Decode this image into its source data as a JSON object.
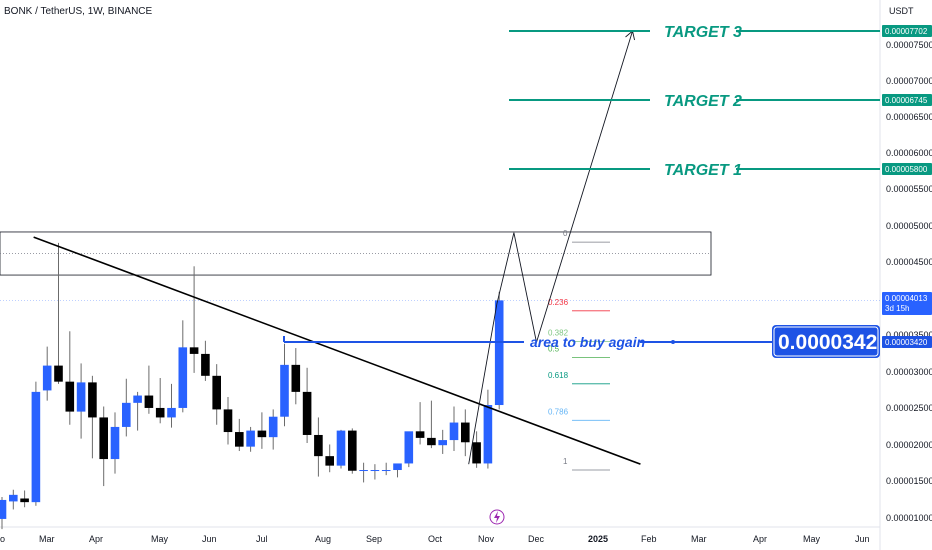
{
  "header": {
    "symbol_title": "BONK / TetherUS, 1W, BINANCE",
    "currency": "USDT"
  },
  "axis_ticks": [
    "0.00007500",
    "0.00007000",
    "0.00006500",
    "0.00006000",
    "0.00005500",
    "0.00005000",
    "0.00004500",
    "0.00003500",
    "0.00003000",
    "0.00002500",
    "0.00002000",
    "0.00001500",
    "0.00001000"
  ],
  "price_tags": {
    "target3": "0.00007702",
    "target2": "0.00006745",
    "target1": "0.00005800",
    "current": "0.00004013",
    "countdown": "3d 15h",
    "buy": "0.00003420"
  },
  "x_labels": [
    "o",
    "Mar",
    "Apr",
    "May",
    "Jun",
    "Jul",
    "Aug",
    "Sep",
    "Oct",
    "Nov",
    "Dec",
    "2025",
    "Feb",
    "Mar",
    "Apr",
    "May",
    "Jun"
  ],
  "annotations": {
    "target1": "TARGET 1",
    "target2": "TARGET 2",
    "target3": "TARGET 3",
    "buy_zone": "area to buy again",
    "buy_price_big": "0.0000342"
  },
  "fib_levels": [
    {
      "label": "0",
      "price": 4.92e-05,
      "color": "#787b86"
    },
    {
      "label": "0.236",
      "price": 3.98e-05,
      "color": "#f23645"
    },
    {
      "label": "0.382",
      "price": 3.56e-05,
      "color": "#81c784"
    },
    {
      "label": "0.5",
      "price": 3.34e-05,
      "color": "#4caf50"
    },
    {
      "label": "0.618",
      "price": 2.98e-05,
      "color": "#089981"
    },
    {
      "label": "0.786",
      "price": 2.48e-05,
      "color": "#64b5f6"
    },
    {
      "label": "1",
      "price": 1.8e-05,
      "color": "#787b86"
    }
  ],
  "colors": {
    "up": "#2962ff",
    "down": "#000000",
    "target": "#089981",
    "buy_line": "#1e53e5",
    "grid_axis_text": "#131722"
  },
  "chart_data": {
    "type": "candlestick",
    "title": "BONK / TetherUS, 1W, BINANCE",
    "ylabel": "USDT",
    "ylim": [
      9e-06,
      7.8e-05
    ],
    "candles": [
      {
        "o": 1.02e-05,
        "h": 1.32e-05,
        "l": 8.8e-06,
        "c": 1.28e-05
      },
      {
        "o": 1.26e-05,
        "h": 1.42e-05,
        "l": 1.15e-05,
        "c": 1.35e-05
      },
      {
        "o": 1.3e-05,
        "h": 1.41e-05,
        "l": 1.18e-05,
        "c": 1.25e-05
      },
      {
        "o": 1.25e-05,
        "h": 2.9e-05,
        "l": 1.2e-05,
        "c": 2.76e-05
      },
      {
        "o": 2.78e-05,
        "h": 3.38e-05,
        "l": 2.64e-05,
        "c": 3.12e-05
      },
      {
        "o": 3.12e-05,
        "h": 4.8e-05,
        "l": 2.87e-05,
        "c": 2.9e-05
      },
      {
        "o": 2.9e-05,
        "h": 3.59e-05,
        "l": 2.31e-05,
        "c": 2.49e-05
      },
      {
        "o": 2.49e-05,
        "h": 3.15e-05,
        "l": 2.12e-05,
        "c": 2.89e-05
      },
      {
        "o": 2.89e-05,
        "h": 2.98e-05,
        "l": 1.85e-05,
        "c": 2.41e-05
      },
      {
        "o": 2.41e-05,
        "h": 2.56e-05,
        "l": 1.47e-05,
        "c": 1.84e-05
      },
      {
        "o": 1.84e-05,
        "h": 2.48e-05,
        "l": 1.64e-05,
        "c": 2.28e-05
      },
      {
        "o": 2.28e-05,
        "h": 2.94e-05,
        "l": 2.15e-05,
        "c": 2.61e-05
      },
      {
        "o": 2.61e-05,
        "h": 2.76e-05,
        "l": 2.23e-05,
        "c": 2.71e-05
      },
      {
        "o": 2.71e-05,
        "h": 3.12e-05,
        "l": 2.46e-05,
        "c": 2.54e-05
      },
      {
        "o": 2.54e-05,
        "h": 2.95e-05,
        "l": 2.33e-05,
        "c": 2.41e-05
      },
      {
        "o": 2.41e-05,
        "h": 2.87e-05,
        "l": 2.27e-05,
        "c": 2.54e-05
      },
      {
        "o": 2.54e-05,
        "h": 3.74e-05,
        "l": 2.48e-05,
        "c": 3.37e-05
      },
      {
        "o": 3.37e-05,
        "h": 4.48e-05,
        "l": 3.02e-05,
        "c": 3.28e-05
      },
      {
        "o": 3.28e-05,
        "h": 3.46e-05,
        "l": 2.91e-05,
        "c": 2.98e-05
      },
      {
        "o": 2.98e-05,
        "h": 3.14e-05,
        "l": 2.31e-05,
        "c": 2.52e-05
      },
      {
        "o": 2.52e-05,
        "h": 2.69e-05,
        "l": 2.04e-05,
        "c": 2.21e-05
      },
      {
        "o": 2.21e-05,
        "h": 2.39e-05,
        "l": 1.95e-05,
        "c": 2.01e-05
      },
      {
        "o": 2.01e-05,
        "h": 2.28e-05,
        "l": 1.94e-05,
        "c": 2.23e-05
      },
      {
        "o": 2.23e-05,
        "h": 2.48e-05,
        "l": 1.98e-05,
        "c": 2.14e-05
      },
      {
        "o": 2.14e-05,
        "h": 2.52e-05,
        "l": 1.97e-05,
        "c": 2.42e-05
      },
      {
        "o": 2.42e-05,
        "h": 3.42e-05,
        "l": 2.29e-05,
        "c": 3.13e-05
      },
      {
        "o": 3.13e-05,
        "h": 3.36e-05,
        "l": 2.59e-05,
        "c": 2.76e-05
      },
      {
        "o": 2.76e-05,
        "h": 3.09e-05,
        "l": 2.06e-05,
        "c": 2.17e-05
      },
      {
        "o": 2.17e-05,
        "h": 2.41e-05,
        "l": 1.6e-05,
        "c": 1.88e-05
      },
      {
        "o": 1.88e-05,
        "h": 2.04e-05,
        "l": 1.66e-05,
        "c": 1.75e-05
      },
      {
        "o": 1.75e-05,
        "h": 2.24e-05,
        "l": 1.71e-05,
        "c": 2.23e-05
      },
      {
        "o": 2.23e-05,
        "h": 2.26e-05,
        "l": 1.64e-05,
        "c": 1.68e-05
      },
      {
        "o": 1.68e-05,
        "h": 1.79e-05,
        "l": 1.52e-05,
        "c": 1.69e-05
      },
      {
        "o": 1.69e-05,
        "h": 1.77e-05,
        "l": 1.56e-05,
        "c": 1.69e-05
      },
      {
        "o": 1.69e-05,
        "h": 1.79e-05,
        "l": 1.62e-05,
        "c": 1.69e-05
      },
      {
        "o": 1.69e-05,
        "h": 1.78e-05,
        "l": 1.59e-05,
        "c": 1.78e-05
      },
      {
        "o": 1.78e-05,
        "h": 2.21e-05,
        "l": 1.73e-05,
        "c": 2.22e-05
      },
      {
        "o": 2.22e-05,
        "h": 2.62e-05,
        "l": 2.04e-05,
        "c": 2.13e-05
      },
      {
        "o": 2.13e-05,
        "h": 2.64e-05,
        "l": 1.99e-05,
        "c": 2.03e-05
      },
      {
        "o": 2.03e-05,
        "h": 2.24e-05,
        "l": 1.91e-05,
        "c": 2.1e-05
      },
      {
        "o": 2.1e-05,
        "h": 2.56e-05,
        "l": 1.95e-05,
        "c": 2.34e-05
      },
      {
        "o": 2.34e-05,
        "h": 2.52e-05,
        "l": 1.88e-05,
        "c": 2.07e-05
      },
      {
        "o": 2.07e-05,
        "h": 2.22e-05,
        "l": 1.72e-05,
        "c": 1.78e-05
      },
      {
        "o": 1.78e-05,
        "h": 2.79e-05,
        "l": 1.71e-05,
        "c": 2.58e-05
      },
      {
        "o": 2.58e-05,
        "h": 4.13e-05,
        "l": 2.52e-05,
        "c": 4.013e-05
      }
    ],
    "projection_path": [
      {
        "i": 41.3,
        "p": 1.77e-05
      },
      {
        "i": 43.8,
        "p": 3.97e-05
      },
      {
        "i": 45.3,
        "p": 4.94e-05
      },
      {
        "i": 47.3,
        "p": 3.44e-05
      },
      {
        "i": 55.8,
        "p": 7.702e-05
      }
    ],
    "trendline": [
      {
        "i": 2.8,
        "p": 4.88e-05
      },
      {
        "i": 56.5,
        "p": 1.77e-05
      }
    ],
    "resistance_zone": [
      4.36e-05,
      4.95e-05
    ],
    "targets": [
      {
        "label": "TARGET 1",
        "price": 5.8e-05
      },
      {
        "label": "TARGET 2",
        "price": 6.745e-05
      },
      {
        "label": "TARGET 3",
        "price": 7.702e-05
      }
    ],
    "buy_level": 3.42e-05,
    "x_tick_labels": [
      "o",
      "Mar",
      "Apr",
      "May",
      "Jun",
      "Jul",
      "Aug",
      "Sep",
      "Oct",
      "Nov",
      "Dec",
      "2025",
      "Feb",
      "Mar",
      "Apr",
      "May",
      "Jun"
    ]
  }
}
